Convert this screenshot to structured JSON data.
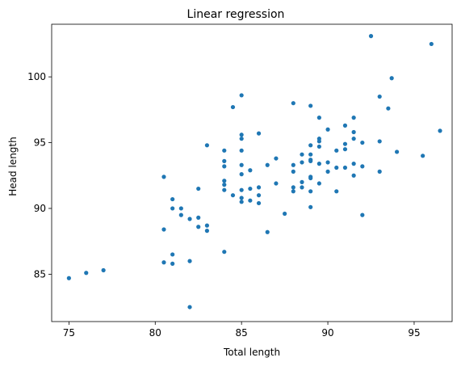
{
  "chart_data": {
    "type": "scatter",
    "title": "Linear regression",
    "xlabel": "Total length",
    "ylabel": "Head length",
    "xlim": [
      74.0,
      97.2
    ],
    "ylim": [
      81.4,
      104.0
    ],
    "xticks": [
      75,
      80,
      85,
      90,
      95
    ],
    "yticks": [
      85,
      90,
      95,
      100
    ],
    "grid": false,
    "marker_color": "#1f77b4",
    "series": [
      {
        "points": [
          [
            75.0,
            84.7
          ],
          [
            76.0,
            85.1
          ],
          [
            77.0,
            85.3
          ],
          [
            80.5,
            92.4
          ],
          [
            80.5,
            88.4
          ],
          [
            80.5,
            85.9
          ],
          [
            81.0,
            90.7
          ],
          [
            81.0,
            90.0
          ],
          [
            81.0,
            86.5
          ],
          [
            81.0,
            85.8
          ],
          [
            81.5,
            90.0
          ],
          [
            81.5,
            89.5
          ],
          [
            82.0,
            89.2
          ],
          [
            82.0,
            86.0
          ],
          [
            82.0,
            82.5
          ],
          [
            82.5,
            91.5
          ],
          [
            82.5,
            89.3
          ],
          [
            82.5,
            88.6
          ],
          [
            83.0,
            94.8
          ],
          [
            83.0,
            88.7
          ],
          [
            83.0,
            88.3
          ],
          [
            84.0,
            94.4
          ],
          [
            84.0,
            93.6
          ],
          [
            84.0,
            93.2
          ],
          [
            84.0,
            92.1
          ],
          [
            84.0,
            91.8
          ],
          [
            84.0,
            91.4
          ],
          [
            84.0,
            86.7
          ],
          [
            84.5,
            97.7
          ],
          [
            84.5,
            91.0
          ],
          [
            85.0,
            98.6
          ],
          [
            85.0,
            95.6
          ],
          [
            85.0,
            95.3
          ],
          [
            85.0,
            94.4
          ],
          [
            85.0,
            93.3
          ],
          [
            85.0,
            92.6
          ],
          [
            85.0,
            91.4
          ],
          [
            85.0,
            90.8
          ],
          [
            85.0,
            90.5
          ],
          [
            85.5,
            92.9
          ],
          [
            85.5,
            91.5
          ],
          [
            85.5,
            90.6
          ],
          [
            86.0,
            95.7
          ],
          [
            86.0,
            91.6
          ],
          [
            86.0,
            91.0
          ],
          [
            86.0,
            90.4
          ],
          [
            86.5,
            93.3
          ],
          [
            86.5,
            88.2
          ],
          [
            87.0,
            93.8
          ],
          [
            87.0,
            91.9
          ],
          [
            87.5,
            89.6
          ],
          [
            88.0,
            98.0
          ],
          [
            88.0,
            93.3
          ],
          [
            88.0,
            92.8
          ],
          [
            88.0,
            91.6
          ],
          [
            88.0,
            91.3
          ],
          [
            88.5,
            94.1
          ],
          [
            88.5,
            93.5
          ],
          [
            88.5,
            92.0
          ],
          [
            88.5,
            91.6
          ],
          [
            89.0,
            97.8
          ],
          [
            89.0,
            94.8
          ],
          [
            89.0,
            94.1
          ],
          [
            89.0,
            93.7
          ],
          [
            89.0,
            93.6
          ],
          [
            89.0,
            92.4
          ],
          [
            89.0,
            92.3
          ],
          [
            89.0,
            91.3
          ],
          [
            89.0,
            90.1
          ],
          [
            89.5,
            96.9
          ],
          [
            89.5,
            95.3
          ],
          [
            89.5,
            95.1
          ],
          [
            89.5,
            94.7
          ],
          [
            89.5,
            93.4
          ],
          [
            89.5,
            91.9
          ],
          [
            90.0,
            96.0
          ],
          [
            90.0,
            93.5
          ],
          [
            90.0,
            92.8
          ],
          [
            90.5,
            94.4
          ],
          [
            90.5,
            93.1
          ],
          [
            90.5,
            91.3
          ],
          [
            91.0,
            96.3
          ],
          [
            91.0,
            94.9
          ],
          [
            91.0,
            94.5
          ],
          [
            91.0,
            93.1
          ],
          [
            91.5,
            96.9
          ],
          [
            91.5,
            95.8
          ],
          [
            91.5,
            95.3
          ],
          [
            91.5,
            93.4
          ],
          [
            91.5,
            92.5
          ],
          [
            92.0,
            95.0
          ],
          [
            92.0,
            93.2
          ],
          [
            92.0,
            89.5
          ],
          [
            92.5,
            103.1
          ],
          [
            93.0,
            98.5
          ],
          [
            93.0,
            95.1
          ],
          [
            93.0,
            92.8
          ],
          [
            93.5,
            97.6
          ],
          [
            93.7,
            99.9
          ],
          [
            94.0,
            94.3
          ],
          [
            95.5,
            94.0
          ],
          [
            96.0,
            102.5
          ],
          [
            96.5,
            95.9
          ]
        ]
      }
    ]
  }
}
